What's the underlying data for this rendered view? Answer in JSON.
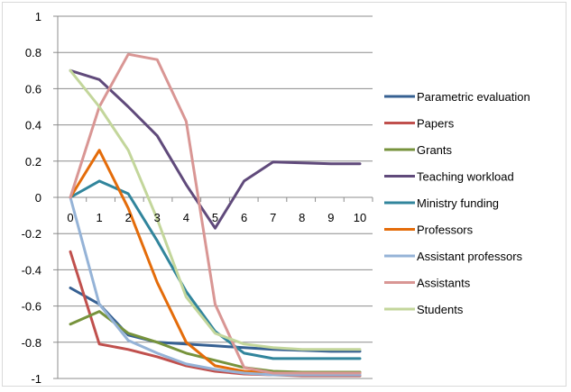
{
  "chart_data": {
    "type": "line",
    "x": [
      0,
      1,
      2,
      3,
      4,
      5,
      6,
      7,
      8,
      9,
      10
    ],
    "xtick_labels": [
      "0",
      "1",
      "2",
      "3",
      "4",
      "5",
      "6",
      "7",
      "8",
      "9",
      "10"
    ],
    "ylim": [
      -1,
      1
    ],
    "yticks": [
      1,
      0.8,
      0.6,
      0.4,
      0.2,
      0,
      -0.2,
      -0.4,
      -0.6,
      -0.8,
      -1
    ],
    "ytick_labels": [
      "1",
      "0.8",
      "0.6",
      "0.4",
      "0.2",
      "0",
      "-0.2",
      "-0.4",
      "-0.6",
      "-0.8",
      "-1"
    ],
    "grid": "horizontal",
    "legend_position": "right",
    "series": [
      {
        "name": "Parametric evaluation",
        "color": "#366092",
        "values": [
          -0.5,
          -0.59,
          -0.76,
          -0.8,
          -0.81,
          -0.82,
          -0.83,
          -0.84,
          -0.845,
          -0.85,
          -0.85
        ]
      },
      {
        "name": "Papers",
        "color": "#c0504d",
        "values": [
          -0.3,
          -0.81,
          -0.84,
          -0.88,
          -0.93,
          -0.96,
          -0.975,
          -0.98,
          -0.985,
          -0.985,
          -0.985
        ]
      },
      {
        "name": "Grants",
        "color": "#77933c",
        "values": [
          -0.7,
          -0.63,
          -0.75,
          -0.8,
          -0.86,
          -0.9,
          -0.94,
          -0.96,
          -0.965,
          -0.965,
          -0.965
        ]
      },
      {
        "name": "Teaching workload",
        "color": "#604a7b",
        "values": [
          0.7,
          0.65,
          0.5,
          0.34,
          0.07,
          -0.17,
          0.09,
          0.195,
          0.19,
          0.185,
          0.185
        ]
      },
      {
        "name": "Ministry funding",
        "color": "#31859c",
        "values": [
          0.0,
          0.09,
          0.02,
          -0.24,
          -0.52,
          -0.74,
          -0.86,
          -0.89,
          -0.89,
          -0.89,
          -0.89
        ]
      },
      {
        "name": "Professors",
        "color": "#e46c0a",
        "values": [
          0.0,
          0.26,
          -0.06,
          -0.47,
          -0.8,
          -0.93,
          -0.96,
          -0.97,
          -0.97,
          -0.97,
          -0.97
        ]
      },
      {
        "name": "Assistant professors",
        "color": "#95b3d7",
        "values": [
          0.0,
          -0.59,
          -0.79,
          -0.86,
          -0.92,
          -0.95,
          -0.97,
          -0.98,
          -0.98,
          -0.98,
          -0.98
        ]
      },
      {
        "name": "Assistants",
        "color": "#d99694",
        "values": [
          0.0,
          0.5,
          0.79,
          0.76,
          0.42,
          -0.59,
          -0.94,
          -0.97,
          -0.97,
          -0.97,
          -0.97
        ]
      },
      {
        "name": "Students",
        "color": "#c3d69b",
        "values": [
          0.7,
          0.5,
          0.26,
          -0.12,
          -0.55,
          -0.75,
          -0.81,
          -0.83,
          -0.84,
          -0.84,
          -0.84
        ]
      }
    ]
  }
}
